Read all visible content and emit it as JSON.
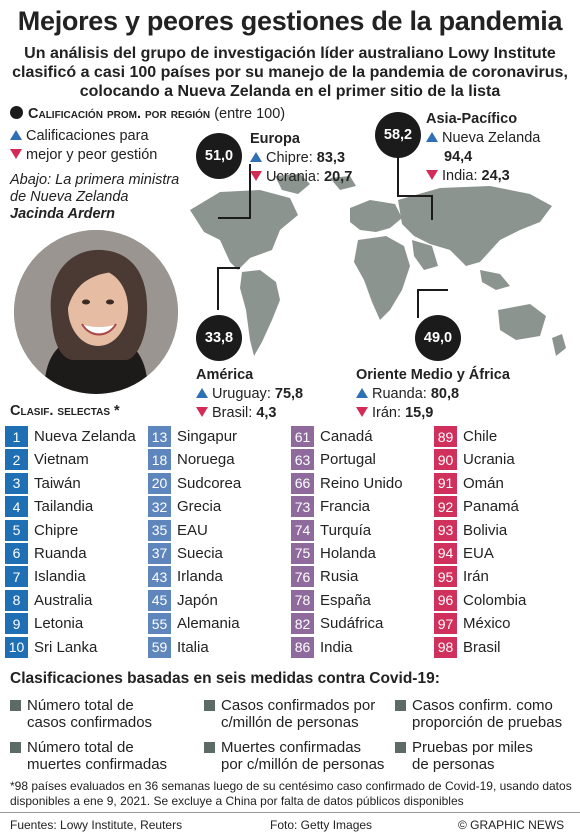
{
  "header": {
    "title": "Mejores y peores gestiones de la pandemia",
    "subtitle": "Un análisis del grupo de investigación líder australiano Lowy Institute clasificó a casi 100 países por su manejo de la pandemia de coronavirus, colocando a Nueva Zelanda en el primer sitio de la lista"
  },
  "legend": {
    "heading": "Calificación prom. por región",
    "scale": "(entre 100)",
    "best_label": "Calificaciones para",
    "worst_label": "mejor y peor gestión"
  },
  "caption": {
    "line1": "Abajo: La primera ministra",
    "line2": "de Nueva Zelanda",
    "name": "Jacinda Ardern"
  },
  "regions": {
    "europa": {
      "avg": "51,0",
      "name": "Europa",
      "best_country": "Chipre",
      "best_score": "83,3",
      "worst_country": "Ucrania",
      "worst_score": "20,7"
    },
    "asia": {
      "avg": "58,2",
      "name": "Asia-Pacífico",
      "best_country": "Nueva Zelanda",
      "best_score": "94,4",
      "worst_country": "India",
      "worst_score": "24,3"
    },
    "america": {
      "avg": "33,8",
      "name": "América",
      "best_country": "Uruguay",
      "best_score": "75,8",
      "worst_country": "Brasil",
      "worst_score": "4,3"
    },
    "medio": {
      "avg": "49,0",
      "name": "Oriente Medio y África",
      "best_country": "Ruanda",
      "best_score": "80,8",
      "worst_country": "Irán",
      "worst_score": "15,9"
    }
  },
  "ranking": {
    "heading": "Clasif. selectas *",
    "columns": [
      [
        {
          "rank": "1",
          "country": "Nueva Zelanda"
        },
        {
          "rank": "2",
          "country": "Vietnam"
        },
        {
          "rank": "3",
          "country": "Taiwán"
        },
        {
          "rank": "4",
          "country": "Tailandia"
        },
        {
          "rank": "5",
          "country": "Chipre"
        },
        {
          "rank": "6",
          "country": "Ruanda"
        },
        {
          "rank": "7",
          "country": "Islandia"
        },
        {
          "rank": "8",
          "country": "Australia"
        },
        {
          "rank": "9",
          "country": "Letonia"
        },
        {
          "rank": "10",
          "country": "Sri Lanka"
        }
      ],
      [
        {
          "rank": "13",
          "country": "Singapur"
        },
        {
          "rank": "18",
          "country": "Noruega"
        },
        {
          "rank": "20",
          "country": "Sudcorea"
        },
        {
          "rank": "32",
          "country": "Grecia"
        },
        {
          "rank": "35",
          "country": "EAU"
        },
        {
          "rank": "37",
          "country": "Suecia"
        },
        {
          "rank": "43",
          "country": "Irlanda"
        },
        {
          "rank": "45",
          "country": "Japón"
        },
        {
          "rank": "55",
          "country": "Alemania"
        },
        {
          "rank": "59",
          "country": "Italia"
        }
      ],
      [
        {
          "rank": "61",
          "country": "Canadá"
        },
        {
          "rank": "63",
          "country": "Portugal"
        },
        {
          "rank": "66",
          "country": "Reino Unido"
        },
        {
          "rank": "73",
          "country": "Francia"
        },
        {
          "rank": "74",
          "country": "Turquía"
        },
        {
          "rank": "75",
          "country": "Holanda"
        },
        {
          "rank": "76",
          "country": "Rusia"
        },
        {
          "rank": "78",
          "country": "España"
        },
        {
          "rank": "82",
          "country": "Sudáfrica"
        },
        {
          "rank": "86",
          "country": "India"
        }
      ],
      [
        {
          "rank": "89",
          "country": "Chile"
        },
        {
          "rank": "90",
          "country": "Ucrania"
        },
        {
          "rank": "91",
          "country": "Omán"
        },
        {
          "rank": "92",
          "country": "Panamá"
        },
        {
          "rank": "93",
          "country": "Bolivia"
        },
        {
          "rank": "94",
          "country": "EUA"
        },
        {
          "rank": "95",
          "country": "Irán"
        },
        {
          "rank": "96",
          "country": "Colombia"
        },
        {
          "rank": "97",
          "country": "México"
        },
        {
          "rank": "98",
          "country": "Brasil"
        }
      ]
    ]
  },
  "criteria": {
    "heading": "Clasificaciones basadas en seis medidas contra Covid-19:",
    "items": [
      {
        "line1": "Número total de",
        "line2": "casos confirmados"
      },
      {
        "line1": "Casos confirmados por",
        "line2": "c/millón de personas"
      },
      {
        "line1": "Casos confirm. como",
        "line2": "proporción de pruebas"
      },
      {
        "line1": "Número total de",
        "line2": "muertes confirmadas"
      },
      {
        "line1": "Muertes confirmadas",
        "line2": "por c/millón de personas"
      },
      {
        "line1": "Pruebas por miles",
        "line2": "de personas"
      }
    ]
  },
  "footnote": "*98 países evaluados en 36 semanas luego de su centésimo caso confirmado de Covid-19, usando datos disponibles a ene 9, 2021. Se excluye a China por falta de datos públicos disponibles",
  "footer": {
    "sources": "Fuentes: Lowy Institute, Reuters",
    "photo": "Foto: Getty Images",
    "credit": "© GRAPHIC NEWS"
  },
  "colors": {
    "best": "#2e6fb6",
    "worst": "#d42a56",
    "rank_col1": "#1f6fb5",
    "rank_col2": "#5e86bd",
    "rank_col3": "#8e6b9c",
    "rank_col4": "#d0305c",
    "map": "#8c9490"
  },
  "icons": {
    "best": "triangle-up-icon",
    "worst": "triangle-down-icon",
    "criterion": "square-bullet-icon"
  }
}
